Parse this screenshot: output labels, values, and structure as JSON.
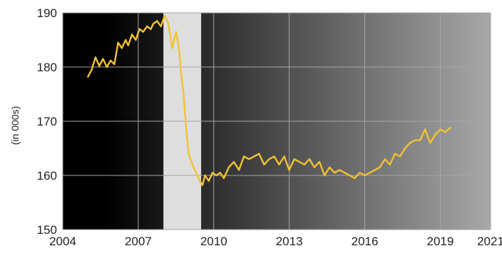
{
  "chart_data": {
    "type": "line",
    "title": "",
    "xlabel": "",
    "ylabel": "(in 000s)",
    "xlim": [
      2004,
      2021
    ],
    "ylim": [
      150,
      190
    ],
    "x_ticks": [
      2004,
      2007,
      2010,
      2013,
      2016,
      2019,
      2021
    ],
    "y_ticks": [
      150,
      160,
      170,
      180,
      190
    ],
    "grid": true,
    "recession_band": {
      "x_start": 2008.0,
      "x_end": 2009.5
    },
    "colors": {
      "line": "#f2c232",
      "recession": "#dedede",
      "grid": "#a6a6a6",
      "background_dark": "#000000",
      "background_light": "#a8a8a8",
      "text": "#222222"
    },
    "series": [
      {
        "x": [
          2005.0,
          2005.15,
          2005.3,
          2005.45,
          2005.6,
          2005.75,
          2005.9,
          2006.05,
          2006.2,
          2006.35,
          2006.5,
          2006.6,
          2006.75,
          2006.9,
          2007.05,
          2007.2,
          2007.35,
          2007.5,
          2007.6,
          2007.75,
          2007.9,
          2008.05,
          2008.2,
          2008.35,
          2008.5,
          2008.6,
          2008.7,
          2008.8,
          2008.9,
          2009.0,
          2009.15,
          2009.3,
          2009.45,
          2009.55,
          2009.65,
          2009.8,
          2009.95,
          2010.1,
          2010.25,
          2010.4,
          2010.6,
          2010.8,
          2011.0,
          2011.2,
          2011.4,
          2011.6,
          2011.8,
          2012.0,
          2012.2,
          2012.4,
          2012.6,
          2012.8,
          2013.0,
          2013.2,
          2013.4,
          2013.6,
          2013.8,
          2014.0,
          2014.2,
          2014.4,
          2014.6,
          2014.8,
          2015.0,
          2015.2,
          2015.4,
          2015.6,
          2015.8,
          2016.0,
          2016.2,
          2016.4,
          2016.6,
          2016.8,
          2017.0,
          2017.2,
          2017.4,
          2017.6,
          2017.8,
          2018.0,
          2018.2,
          2018.4,
          2018.6,
          2018.8,
          2019.0,
          2019.2,
          2019.4
        ],
        "y": [
          178.2,
          179.5,
          181.8,
          180.2,
          181.5,
          180.0,
          181.2,
          180.5,
          184.5,
          183.5,
          185.0,
          184.0,
          186.0,
          185.0,
          187.0,
          186.5,
          187.5,
          187.0,
          188.0,
          188.5,
          187.5,
          189.5,
          188.0,
          183.5,
          186.5,
          184.0,
          179.0,
          175.0,
          169.0,
          164.0,
          162.0,
          160.5,
          159.0,
          158.2,
          160.0,
          159.0,
          160.5,
          160.0,
          160.5,
          159.5,
          161.5,
          162.5,
          161.0,
          163.5,
          163.0,
          163.5,
          164.0,
          162.0,
          163.0,
          163.5,
          162.0,
          163.5,
          161.0,
          163.0,
          162.5,
          162.0,
          163.0,
          161.5,
          162.5,
          160.0,
          161.5,
          160.5,
          161.0,
          160.5,
          160.0,
          159.5,
          160.5,
          160.0,
          160.5,
          161.0,
          161.5,
          163.0,
          162.0,
          164.0,
          163.5,
          165.0,
          166.0,
          166.5,
          166.5,
          168.5,
          166.0,
          167.5,
          168.5,
          168.0,
          168.8
        ]
      }
    ]
  }
}
